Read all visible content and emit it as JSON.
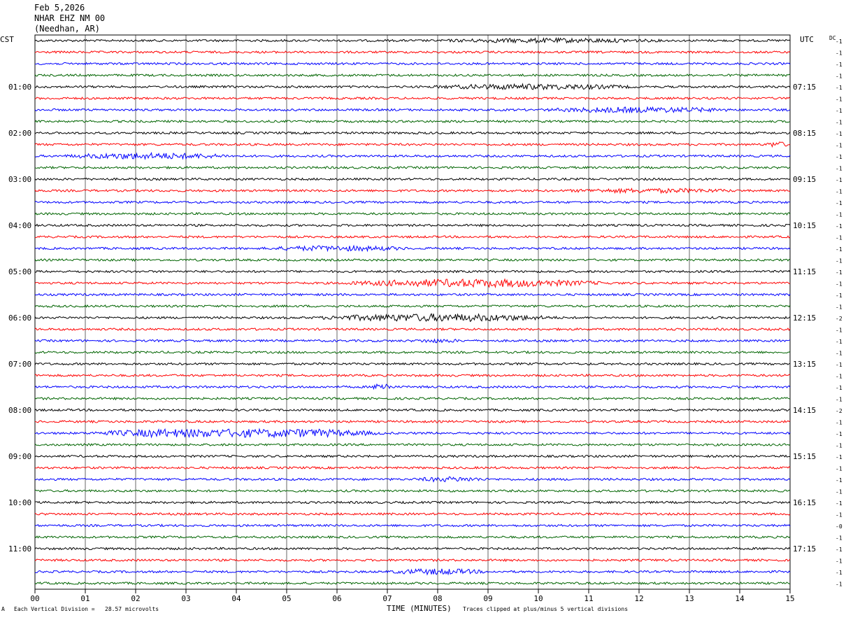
{
  "header": {
    "date": "Feb 5,2026",
    "station": "NHAR EHZ NM 00",
    "location": "(Needhan, AR)"
  },
  "left_axis_title": "CST",
  "right_axis_title": "UTC",
  "dc_label": "DC",
  "footer": {
    "scale_text": "Each Vertical Division =   28.57 microvolts",
    "clip_text": "Traces clipped at plus/minus 5 vertical divisions",
    "corner_mark": "A"
  },
  "chart_data": {
    "type": "line",
    "title": "NHAR EHZ NM 00",
    "xlabel": "TIME (MINUTES)",
    "xlim": [
      0,
      15
    ],
    "x_ticks": [
      "00",
      "01",
      "02",
      "03",
      "04",
      "05",
      "06",
      "07",
      "08",
      "09",
      "10",
      "11",
      "12",
      "13",
      "14",
      "15"
    ],
    "rows_per_hour": 4,
    "row_count": 48,
    "trace_colors": [
      "#000000",
      "#ff0000",
      "#0000ff",
      "#006400"
    ],
    "left_time_labels": [
      {
        "row": 4,
        "label": "01:00"
      },
      {
        "row": 8,
        "label": "02:00"
      },
      {
        "row": 12,
        "label": "03:00"
      },
      {
        "row": 16,
        "label": "04:00"
      },
      {
        "row": 20,
        "label": "05:00"
      },
      {
        "row": 24,
        "label": "06:00"
      },
      {
        "row": 28,
        "label": "07:00"
      },
      {
        "row": 32,
        "label": "08:00"
      },
      {
        "row": 36,
        "label": "09:00"
      },
      {
        "row": 40,
        "label": "10:00"
      },
      {
        "row": 44,
        "label": "11:00"
      }
    ],
    "right_time_labels": [
      {
        "row": 4,
        "label": "07:15"
      },
      {
        "row": 8,
        "label": "08:15"
      },
      {
        "row": 12,
        "label": "09:15"
      },
      {
        "row": 16,
        "label": "10:15"
      },
      {
        "row": 20,
        "label": "11:15"
      },
      {
        "row": 24,
        "label": "12:15"
      },
      {
        "row": 28,
        "label": "13:15"
      },
      {
        "row": 32,
        "label": "14:15"
      },
      {
        "row": 36,
        "label": "15:15"
      },
      {
        "row": 40,
        "label": "16:15"
      },
      {
        "row": 44,
        "label": "17:15"
      }
    ],
    "dc_offsets": [
      "-1",
      "-1",
      "-1",
      "-1",
      "-1",
      "-1",
      "-1",
      "-1",
      "-1",
      "-1",
      "-1",
      "-1",
      "-1",
      "-1",
      "-1",
      "-1",
      "-1",
      "-1",
      "-1",
      "-1",
      "-1",
      "-1",
      "-1",
      "-1",
      "-2",
      "-1",
      "-1",
      "-1",
      "-1",
      "-1",
      "-1",
      "-1",
      "-2",
      "-1",
      "-1",
      "-1",
      "-1",
      "-1",
      "-1",
      "-1",
      "-1",
      "-1",
      "-0",
      "-1",
      "-1",
      "-1",
      "-1",
      "-1"
    ],
    "amplitude_units": "vertical divisions",
    "baseline_noise": 1.3,
    "events": [
      {
        "row": 0,
        "start": 8.0,
        "end": 12.5,
        "amp": 1.6
      },
      {
        "row": 4,
        "start": 7.8,
        "end": 12.0,
        "amp": 2.2
      },
      {
        "row": 6,
        "start": 10.0,
        "end": 14.0,
        "amp": 2.2
      },
      {
        "row": 9,
        "start": 14.5,
        "end": 15.0,
        "amp": 2.2
      },
      {
        "row": 10,
        "start": 0.5,
        "end": 4.0,
        "amp": 2.6
      },
      {
        "row": 13,
        "start": 10.5,
        "end": 14.0,
        "amp": 1.6
      },
      {
        "row": 18,
        "start": 4.5,
        "end": 7.5,
        "amp": 2.0
      },
      {
        "row": 21,
        "start": 6.0,
        "end": 11.5,
        "amp": 3.6
      },
      {
        "row": 24,
        "start": 5.5,
        "end": 10.5,
        "amp": 3.4
      },
      {
        "row": 26,
        "start": 7.5,
        "end": 8.5,
        "amp": 1.2
      },
      {
        "row": 30,
        "start": 6.7,
        "end": 7.1,
        "amp": 4.2
      },
      {
        "row": 34,
        "start": 1.0,
        "end": 7.0,
        "amp": 5.0
      },
      {
        "row": 38,
        "start": 7.5,
        "end": 9.0,
        "amp": 1.8
      },
      {
        "row": 46,
        "start": 7.0,
        "end": 9.0,
        "amp": 2.4
      }
    ]
  }
}
